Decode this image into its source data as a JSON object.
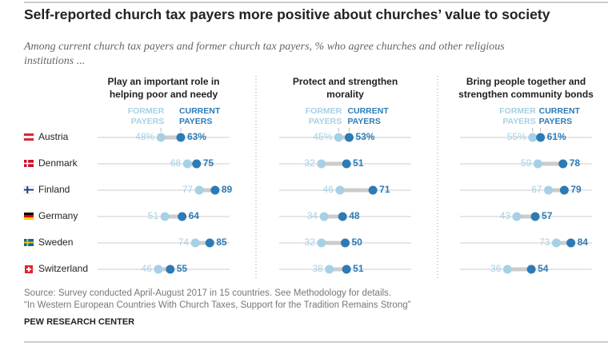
{
  "title": "Self-reported church tax payers more positive about churches’ value to society",
  "subtitle": "Among current church tax payers and former church tax payers, % who agree churches and other religious institutions ...",
  "source": "Source: Survey conducted April-August 2017 in 15 countries. See Methodology for details.",
  "note": "“In Western European Countries With Church Taxes, Support for the Tradition Remains Strong”",
  "logo": "PEW RESEARCH CENTER",
  "chart_data": {
    "type": "dot",
    "categories": [
      "Austria",
      "Denmark",
      "Finland",
      "Germany",
      "Sweden",
      "Switzerland"
    ],
    "xlim": [
      0,
      100
    ],
    "panels": [
      {
        "title": "Play an important role in helping poor and needy",
        "series": [
          {
            "name": "FORMER PAYERS",
            "color": "#a6d0e6",
            "values": [
              48,
              68,
              77,
              51,
              74,
              46
            ],
            "value_labels": [
              "48%",
              "68",
              "77",
              "51",
              "74",
              "46"
            ]
          },
          {
            "name": "CURRENT PAYERS",
            "color": "#2c7bb6",
            "values": [
              63,
              75,
              89,
              64,
              85,
              55
            ],
            "value_labels": [
              "63%",
              "75",
              "89",
              "64",
              "85",
              "55"
            ]
          }
        ]
      },
      {
        "title": "Protect and strengthen morality",
        "series": [
          {
            "name": "FORMER PAYERS",
            "color": "#a6d0e6",
            "values": [
              45,
              32,
              46,
              34,
              32,
              38
            ],
            "value_labels": [
              "45%",
              "32",
              "46",
              "34",
              "32",
              "38"
            ]
          },
          {
            "name": "CURRENT PAYERS",
            "color": "#2c7bb6",
            "values": [
              53,
              51,
              71,
              48,
              50,
              51
            ],
            "value_labels": [
              "53%",
              "51",
              "71",
              "48",
              "50",
              "51"
            ]
          }
        ]
      },
      {
        "title": "Bring people together and strengthen community bonds",
        "series": [
          {
            "name": "FORMER PAYERS",
            "color": "#a6d0e6",
            "values": [
              55,
              59,
              67,
              43,
              73,
              36
            ],
            "value_labels": [
              "55%",
              "59",
              "67",
              "43",
              "73",
              "36"
            ]
          },
          {
            "name": "CURRENT PAYERS",
            "color": "#2c7bb6",
            "values": [
              61,
              78,
              79,
              57,
              84,
              54
            ],
            "value_labels": [
              "61%",
              "78",
              "79",
              "57",
              "84",
              "54"
            ]
          }
        ]
      }
    ]
  }
}
